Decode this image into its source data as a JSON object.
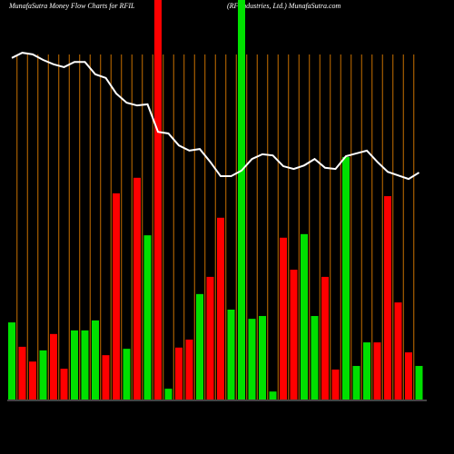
{
  "chart_data": {
    "type": "bar",
    "title": "MunafaSutra  Money Flow  Charts for RFIL",
    "subtitle": "(RF Industries, Ltd.) MunafaSutra.com",
    "ylim": [
      0,
      100
    ],
    "grid_color": "#c87000",
    "bars": {
      "values": [
        19.3,
        13.2,
        9.5,
        12.3,
        16.4,
        7.7,
        17.3,
        17.3,
        19.8,
        11.1,
        51.6,
        12.7,
        55.5,
        41.1,
        100,
        2.7,
        13.0,
        15.0,
        26.4,
        30.7,
        45.5,
        22.5,
        100,
        20.2,
        20.9,
        2.0,
        40.5,
        32.5,
        41.4,
        20.9,
        30.7,
        7.5,
        60.7,
        8.4,
        14.3,
        14.3,
        50.9,
        24.3,
        11.8,
        8.4
      ],
      "colors": [
        "#00e000",
        "#ff0000",
        "#ff0000",
        "#00e000",
        "#ff0000",
        "#ff0000",
        "#00e000",
        "#00e000",
        "#00e000",
        "#ff0000",
        "#ff0000",
        "#00e000",
        "#ff0000",
        "#00e000",
        "#ff0000",
        "#00e000",
        "#ff0000",
        "#ff0000",
        "#00e000",
        "#ff0000",
        "#ff0000",
        "#00e000",
        "#00e000",
        "#00e000",
        "#00e000",
        "#00e000",
        "#ff0000",
        "#ff0000",
        "#00e000",
        "#00e000",
        "#ff0000",
        "#ff0000",
        "#00e000",
        "#00e000",
        "#00e000",
        "#ff0000",
        "#ff0000",
        "#ff0000",
        "#ff0000",
        "#00e000"
      ]
    },
    "line": {
      "color": "#ffffff",
      "values": [
        85.5,
        86.8,
        86.4,
        85.0,
        83.9,
        83.2,
        84.5,
        84.5,
        81.4,
        80.5,
        76.6,
        74.3,
        73.6,
        73.9,
        67.0,
        66.6,
        63.6,
        62.3,
        62.7,
        59.5,
        55.9,
        55.9,
        57.3,
        60.2,
        61.4,
        61.1,
        58.4,
        57.7,
        58.6,
        60.2,
        58.0,
        57.7,
        60.9,
        61.6,
        62.3,
        59.5,
        57.0,
        56.1,
        55.2,
        56.8
      ]
    }
  }
}
